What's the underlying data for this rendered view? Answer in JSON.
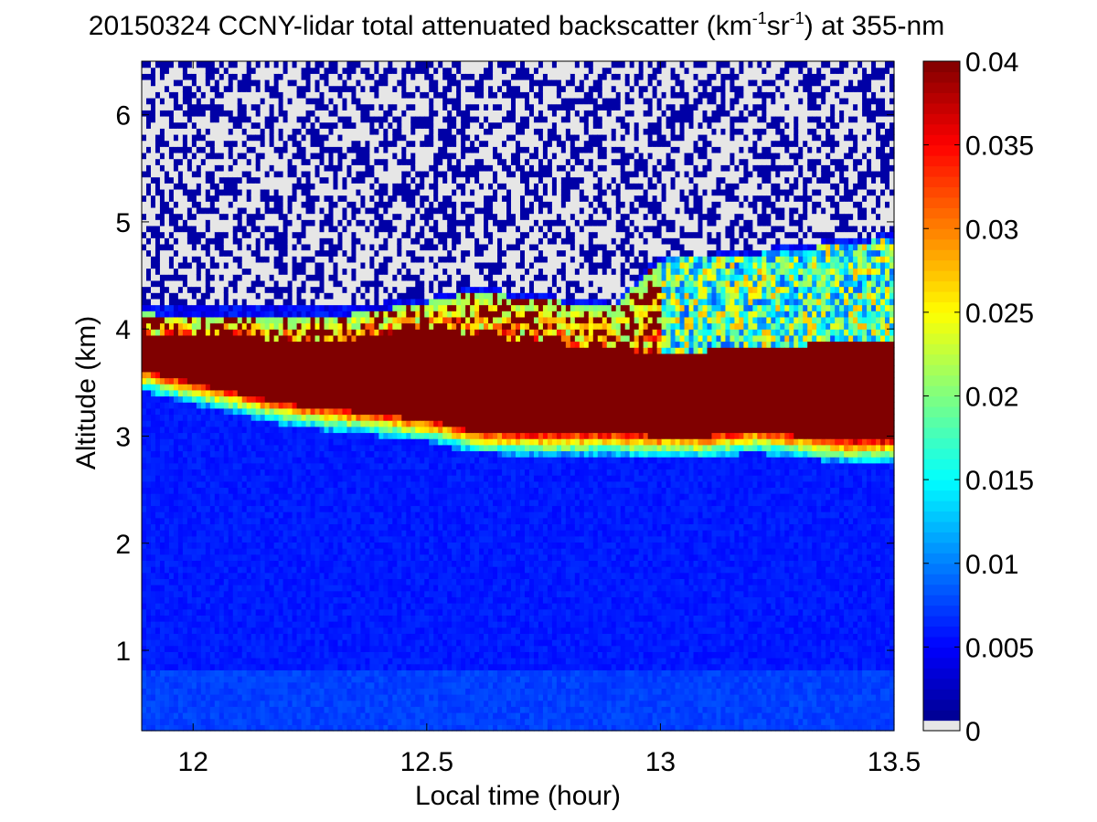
{
  "chart_data": {
    "type": "heatmap",
    "title": {
      "prefix": "20150324 CCNY-lidar total attenuated backscatter (km",
      "sup1": "-1",
      "mid": "sr",
      "sup2": "-1",
      "suffix": ") at 355-nm"
    },
    "xlabel": "Local time (hour)",
    "ylabel": "Altitude (km)",
    "xlim": [
      11.89,
      13.5
    ],
    "ylim": [
      0.25,
      6.5
    ],
    "xticks": [
      12,
      12.5,
      13,
      13.5
    ],
    "yticks": [
      1,
      2,
      3,
      4,
      5,
      6
    ],
    "colorbar": {
      "range": [
        0,
        0.04
      ],
      "ticks": [
        0,
        0.005,
        0.01,
        0.015,
        0.02,
        0.025,
        0.03,
        0.035,
        0.04
      ],
      "tick_labels": [
        "0",
        "0.005",
        "0.01",
        "0.015",
        "0.02",
        "0.025",
        "0.03",
        "0.035",
        "0.04"
      ],
      "colormap": "jet",
      "zero_color": "#e6e6e6"
    },
    "colors": {
      "jet": [
        "#00008f",
        "#0000ff",
        "#00ffff",
        "#ffff00",
        "#ff0000",
        "#800000"
      ],
      "zero": "#e6e6e6"
    },
    "structure": {
      "time_knots": [
        11.89,
        12.0,
        12.1,
        12.2,
        12.3,
        12.4,
        12.5,
        12.6,
        12.7,
        12.8,
        12.9,
        13.0,
        13.1,
        13.2,
        13.3,
        13.4,
        13.5
      ],
      "dense_cloud_top_km": [
        3.95,
        3.95,
        3.93,
        3.9,
        3.88,
        3.95,
        4.0,
        3.95,
        3.9,
        3.85,
        3.82,
        3.78,
        3.8,
        3.85,
        3.85,
        3.9,
        3.9
      ],
      "dense_cloud_base_km": [
        3.62,
        3.5,
        3.4,
        3.3,
        3.25,
        3.2,
        3.15,
        3.05,
        3.02,
        3.02,
        3.02,
        3.0,
        3.0,
        3.05,
        3.0,
        2.95,
        2.95
      ],
      "upper_layer_top_km": [
        4.15,
        4.12,
        4.1,
        4.1,
        4.12,
        4.18,
        4.25,
        4.35,
        4.3,
        4.25,
        4.2,
        4.65,
        4.68,
        4.7,
        4.75,
        4.8,
        4.85
      ],
      "noise_floor_top_km": [
        4.2,
        4.2,
        4.2,
        4.2,
        4.2,
        4.25,
        4.3,
        4.4,
        4.35,
        4.3,
        4.25,
        4.7,
        4.7,
        4.75,
        4.8,
        4.85,
        4.9
      ],
      "boundary_layer_top_km": 0.8,
      "lower_value": 0.006,
      "layer_value": 0.04
    }
  }
}
